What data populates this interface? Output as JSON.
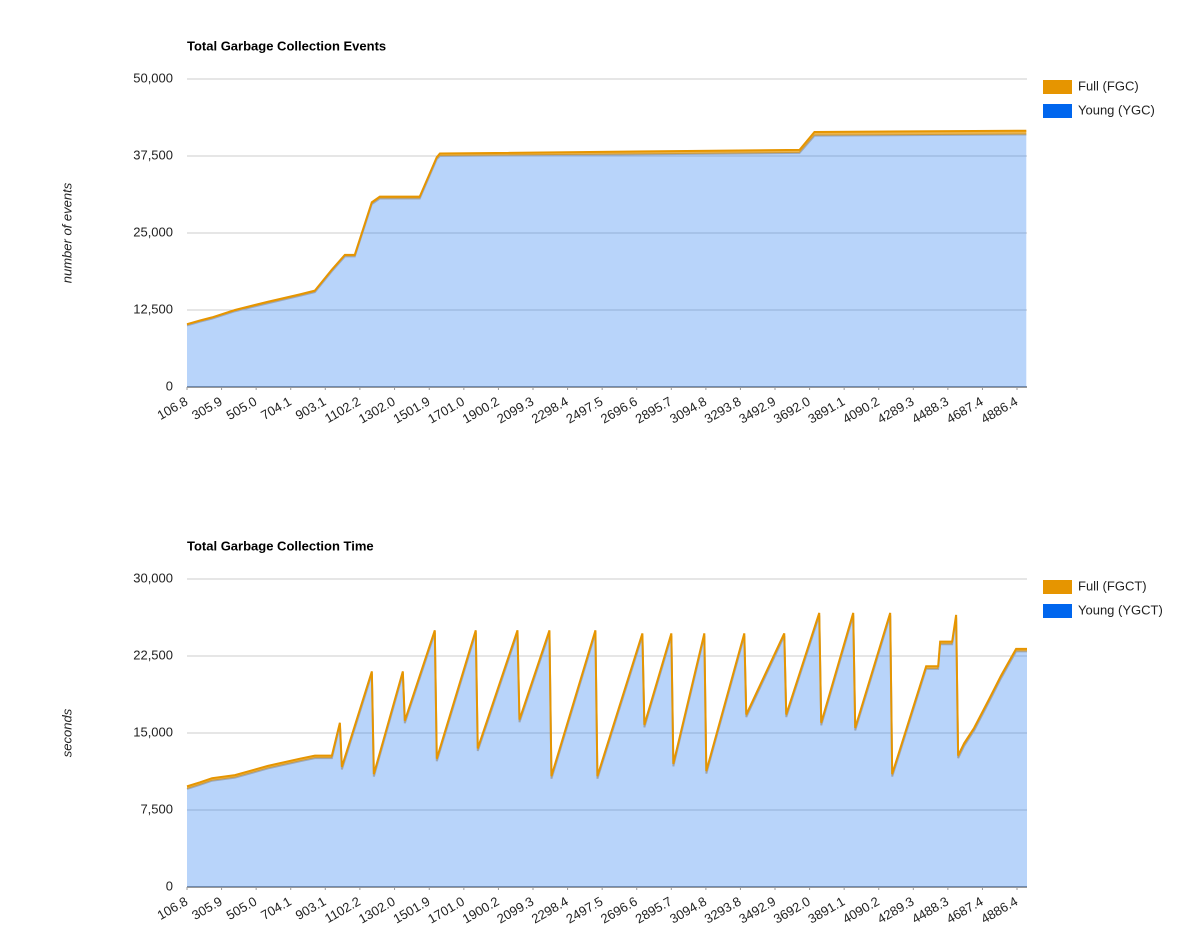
{
  "chart_data": [
    {
      "type": "area",
      "stacked": true,
      "title": "Total Garbage Collection Events",
      "y_label": "number of events",
      "x": [
        106.8,
        181.6,
        250.6,
        383,
        573,
        757,
        843,
        941,
        1016,
        1073,
        1171,
        1217,
        1447,
        1545,
        1563,
        3634,
        3720,
        4940
      ],
      "series": [
        {
          "name": "Young (YGC)",
          "color": "#0066ee",
          "values": [
            10000,
            10600,
            11100,
            12300,
            13600,
            14800,
            15400,
            18800,
            21200,
            21200,
            29700,
            30600,
            30600,
            37000,
            37500,
            38000,
            40800,
            41000
          ]
        },
        {
          "name": "Full (FGC)",
          "color": "#e69500",
          "values": [
            200,
            200,
            200,
            200,
            250,
            250,
            250,
            250,
            250,
            250,
            300,
            300,
            300,
            300,
            400,
            500,
            600,
            600
          ]
        }
      ],
      "xlim": [
        106.8,
        4944
      ],
      "xticks": [
        106.8,
        305.9,
        {
          "value": 505,
          "label": "505.0"
        },
        704.1,
        903.1,
        1102.2,
        {
          "value": 1302,
          "label": "1302.0"
        },
        1501.9,
        {
          "value": 1701,
          "label": "1701.0"
        },
        1900.2,
        2099.3,
        2298.4,
        2497.5,
        2696.6,
        2895.7,
        3094.8,
        3293.8,
        3492.9,
        {
          "value": 3692,
          "label": "3692.0"
        },
        3891.1,
        4090.2,
        4289.3,
        4488.3,
        4687.4,
        4886.4
      ],
      "ylim": [
        0,
        50000
      ],
      "yticks": [
        0,
        {
          "value": 12500,
          "label": "12,500"
        },
        {
          "value": 25000,
          "label": "25,000"
        },
        {
          "value": 37500,
          "label": "37,500"
        },
        {
          "value": 50000,
          "label": "50,000"
        }
      ],
      "grid": true,
      "legend": "right"
    },
    {
      "type": "area",
      "stacked": true,
      "title": "Total Garbage Collection Time",
      "y_label": "seconds",
      "x": [
        106.8,
        181.6,
        250.7,
        383.0,
        572.9,
        757.0,
        843.3,
        941.1,
        987.2,
        998.7,
        1171.3,
        1182.8,
        1349.7,
        1361.2,
        1533.8,
        1545.3,
        1769.7,
        1781.2,
        2009.9,
        2021.4,
        2194.0,
        2205.5,
        2458.7,
        2470.2,
        2729.2,
        2740.7,
        2896.0,
        2907.5,
        3085.9,
        3097.4,
        3316.1,
        3327.6,
        3546.2,
        3557.7,
        3747.6,
        3759.1,
        3943.3,
        3954.8,
        4156.2,
        4167.7,
        4363.3,
        4432.4,
        4443.9,
        4512.9,
        4535.9,
        4547.4,
        4582.0,
        4639.5,
        4725.8,
        4794.9,
        4881.2,
        4944
      ],
      "series": [
        {
          "name": "Young (YGCT)",
          "color": "#0066ee",
          "values": [
            9550,
            9950,
            10350,
            10650,
            11550,
            12250,
            12550,
            12550,
            15750,
            11450,
            20750,
            10750,
            20750,
            15950,
            24750,
            12250,
            24750,
            13250,
            24750,
            16050,
            24750,
            10550,
            24750,
            10550,
            24450,
            15550,
            24450,
            11750,
            24450,
            11050,
            24450,
            16550,
            24450,
            16550,
            26450,
            15750,
            26450,
            15250,
            26450,
            10750,
            21250,
            21250,
            23650,
            23650,
            26250,
            12550,
            13750,
            15250,
            18050,
            20350,
            22950,
            22950
          ]
        },
        {
          "name": "Full (FGCT)",
          "color": "#e69500",
          "values": [
            250,
            250,
            250,
            250,
            250,
            250,
            250,
            250,
            250,
            250,
            250,
            250,
            250,
            250,
            250,
            250,
            250,
            250,
            250,
            250,
            250,
            250,
            250,
            250,
            250,
            250,
            250,
            250,
            250,
            250,
            250,
            250,
            250,
            250,
            250,
            250,
            250,
            250,
            250,
            250,
            250,
            250,
            250,
            250,
            250,
            250,
            250,
            250,
            250,
            250,
            250,
            250
          ]
        }
      ],
      "xlim": [
        106.8,
        4944
      ],
      "xticks": [
        106.8,
        305.9,
        {
          "value": 505,
          "label": "505.0"
        },
        704.1,
        903.1,
        1102.2,
        {
          "value": 1302,
          "label": "1302.0"
        },
        1501.9,
        {
          "value": 1701,
          "label": "1701.0"
        },
        1900.2,
        2099.3,
        2298.4,
        2497.5,
        2696.6,
        2895.7,
        3094.8,
        3293.8,
        3492.9,
        {
          "value": 3692,
          "label": "3692.0"
        },
        3891.1,
        4090.2,
        4289.3,
        4488.3,
        4687.4,
        4886.4
      ],
      "ylim": [
        0,
        30000
      ],
      "yticks": [
        0,
        {
          "value": 7500,
          "label": "7,500"
        },
        {
          "value": 15000,
          "label": "15,000"
        },
        {
          "value": 22500,
          "label": "22,500"
        },
        {
          "value": 30000,
          "label": "30,000"
        }
      ],
      "grid": true,
      "legend": "right"
    }
  ]
}
